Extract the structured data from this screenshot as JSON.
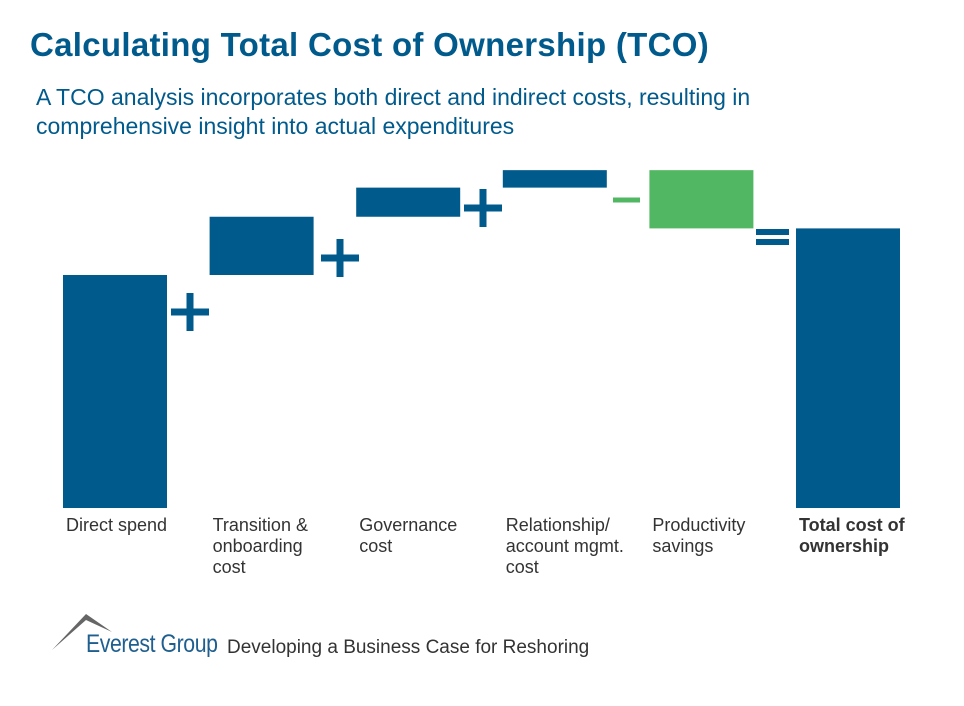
{
  "title": "Calculating Total Cost of Ownership (TCO)",
  "subtitle": "A TCO analysis incorporates both direct and indirect costs, resulting in comprehensive insight into actual expenditures",
  "colors": {
    "cost": "#005A8C",
    "savings": "#52B763",
    "label": "#333333"
  },
  "chart_data": {
    "type": "bar",
    "subtype": "waterfall",
    "title": "",
    "xlabel": "",
    "ylabel": "",
    "axis_visible": false,
    "grid": false,
    "categories": [
      "Direct spend",
      "Transition & onboarding cost",
      "Governance cost",
      "Relationship/ account mgmt. cost",
      "Productivity savings",
      "Total cost of ownership"
    ],
    "category_lines": [
      [
        "Direct spend"
      ],
      [
        "Transition &",
        "onboarding",
        "cost"
      ],
      [
        "Governance",
        "cost"
      ],
      [
        "Relationship/",
        "account mgmt.",
        "cost"
      ],
      [
        "Productivity",
        "savings"
      ],
      [
        "Total cost of",
        "ownership"
      ]
    ],
    "values": [
      100,
      25,
      12.5,
      7.5,
      -25,
      120
    ],
    "kinds": [
      "total",
      "increase",
      "increase",
      "increase",
      "decrease",
      "total"
    ],
    "operators": [
      "+",
      "+",
      "+",
      "−",
      "="
    ],
    "note": ""
  },
  "footer": {
    "brand": "Everest Group",
    "deck_title": "Developing a Business Case for Reshoring"
  }
}
